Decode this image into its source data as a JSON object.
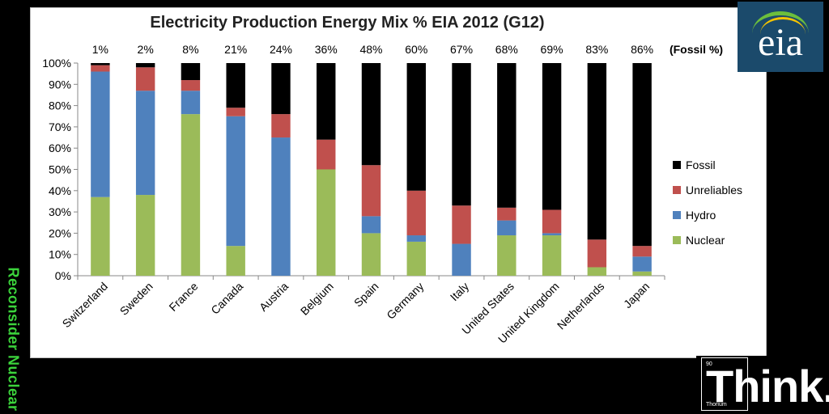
{
  "side_label": "Reconsider Nuclear",
  "logo_text": "eia",
  "think": {
    "word": "Think.",
    "element_number": "90",
    "element_name": "Thorium"
  },
  "colors": {
    "Fossil": "#000000",
    "Unreliables": "#c0504d",
    "Hydro": "#4f81bd",
    "Nuclear": "#9bbb59",
    "side_label": "#3cd43c",
    "logo_bg": "#1b4a6b"
  },
  "chart_data": {
    "type": "bar",
    "stacked": true,
    "title": "Electricity Production Energy Mix % EIA 2012 (G12)",
    "fossil_label": "(Fossil %)",
    "top_labels": [
      "1%",
      "2%",
      "8%",
      "21%",
      "24%",
      "36%",
      "48%",
      "60%",
      "67%",
      "68%",
      "69%",
      "83%",
      "86%"
    ],
    "categories": [
      "Switzerland",
      "Sweden",
      "France",
      "Canada",
      "Austria",
      "Belgium",
      "Spain",
      "Germany",
      "Italy",
      "United States",
      "United Kingdom",
      "Netherlands",
      "Japan"
    ],
    "yticks": [
      "0%",
      "10%",
      "20%",
      "30%",
      "40%",
      "50%",
      "60%",
      "70%",
      "80%",
      "90%",
      "100%"
    ],
    "ylim": [
      0,
      100
    ],
    "legend_position": "right",
    "grid": false,
    "series": [
      {
        "name": "Nuclear",
        "values": [
          37,
          38,
          76,
          14,
          0,
          50,
          20,
          16,
          0,
          19,
          19,
          4,
          2
        ]
      },
      {
        "name": "Hydro",
        "values": [
          59,
          49,
          11,
          61,
          65,
          0,
          8,
          3,
          15,
          7,
          1,
          0,
          7
        ]
      },
      {
        "name": "Unreliables",
        "values": [
          3,
          11,
          5,
          4,
          11,
          14,
          24,
          21,
          18,
          6,
          11,
          13,
          5
        ]
      },
      {
        "name": "Fossil",
        "values": [
          1,
          2,
          8,
          21,
          24,
          36,
          48,
          60,
          67,
          68,
          69,
          83,
          86
        ]
      }
    ],
    "legend": [
      "Fossil",
      "Unreliables",
      "Hydro",
      "Nuclear"
    ]
  }
}
